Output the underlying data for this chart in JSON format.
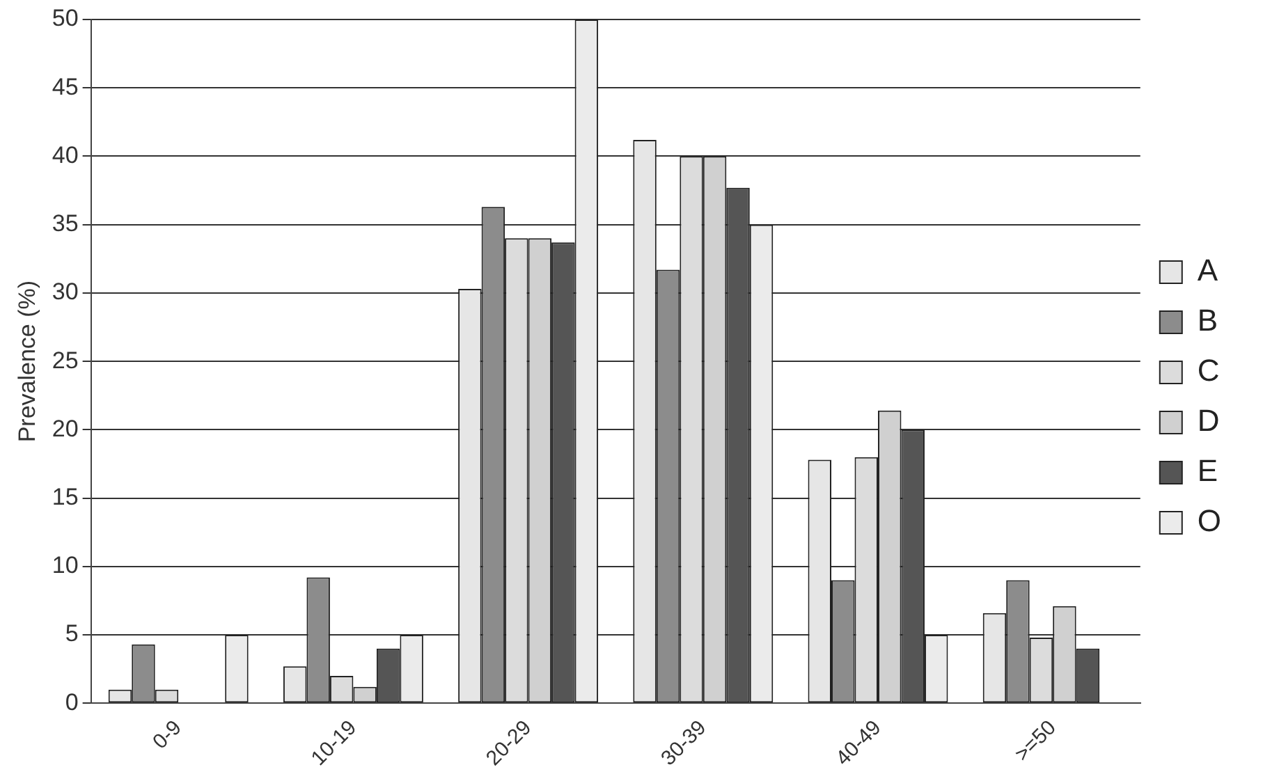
{
  "chart_data": {
    "type": "bar",
    "ylabel": "Prevalence (%)",
    "categories": [
      "0-9",
      "10-19",
      "20-29",
      "30-39",
      "40-49",
      ">=50"
    ],
    "series": [
      {
        "name": "A",
        "color": "#e6e6e6",
        "values": [
          1,
          2.7,
          30.3,
          41.2,
          17.8,
          6.6
        ]
      },
      {
        "name": "B",
        "color": "#8c8c8c",
        "values": [
          4.3,
          9.2,
          36.3,
          31.7,
          9,
          9
        ]
      },
      {
        "name": "C",
        "color": "#dcdcdc",
        "values": [
          1,
          2,
          34,
          40,
          18,
          4.8
        ]
      },
      {
        "name": "D",
        "color": "#d0d0d0",
        "values": [
          0,
          1.2,
          34,
          40,
          21.4,
          7.1
        ]
      },
      {
        "name": "E",
        "color": "#555555",
        "values": [
          0,
          4,
          33.7,
          37.7,
          20,
          4
        ]
      },
      {
        "name": "O",
        "color": "#ebebeb",
        "values": [
          5,
          5,
          50,
          35,
          5,
          0
        ]
      }
    ],
    "ylim": [
      0,
      50
    ],
    "yticks": [
      0,
      5,
      10,
      15,
      20,
      25,
      30,
      35,
      40,
      45,
      50
    ],
    "grid": "y",
    "legend": "right"
  }
}
